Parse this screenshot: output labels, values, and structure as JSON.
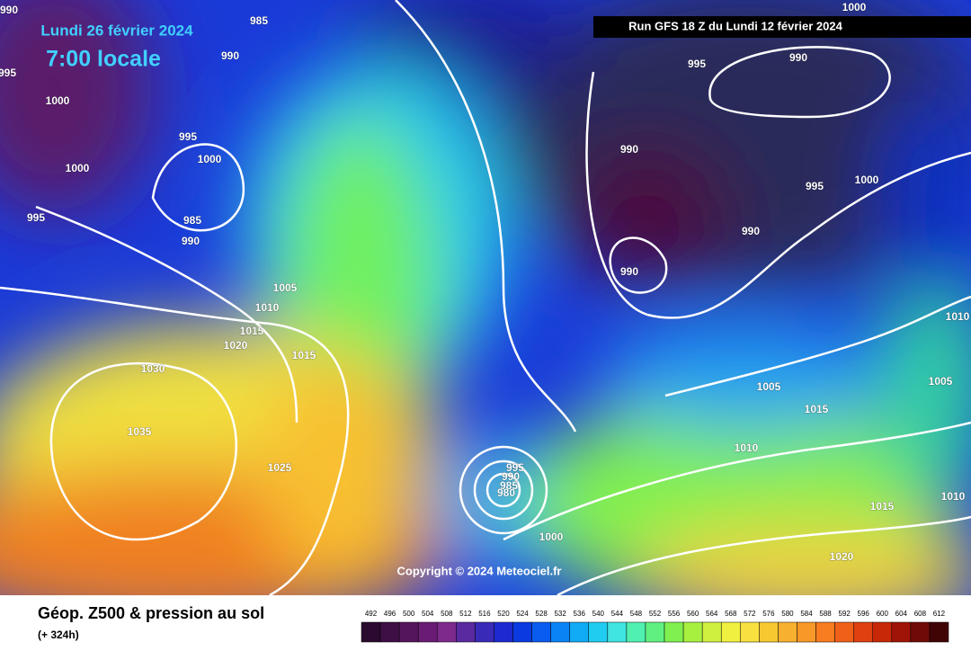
{
  "header": {
    "date": "Lundi 26 février 2024",
    "time": "7:00 locale",
    "run": "Run GFS 18 Z du Lundi 12 février 2024"
  },
  "copyright": "Copyright © 2024 Meteociel.fr",
  "footer": {
    "title": "Géop. Z500 & pression au sol",
    "lead": "(+ 324h)"
  },
  "isobars": [
    990,
    985,
    995,
    990,
    1000,
    995,
    1000,
    1000,
    995,
    985,
    990,
    1005,
    1010,
    1015,
    1020,
    1015,
    1030,
    1035,
    1025,
    995,
    990,
    985,
    980,
    1000,
    1000,
    995,
    990,
    990,
    995,
    1000,
    990,
    990,
    1010,
    1005,
    1005,
    1015,
    1010,
    1015,
    1010,
    1020
  ],
  "colorbar": {
    "ticks": [
      492,
      496,
      500,
      504,
      508,
      512,
      516,
      520,
      524,
      528,
      532,
      536,
      540,
      544,
      548,
      552,
      556,
      560,
      564,
      568,
      572,
      576,
      580,
      584,
      588,
      592,
      596,
      600,
      604,
      608,
      612
    ],
    "colors": [
      "#2a0a2e",
      "#3e0f44",
      "#55155c",
      "#6a1c74",
      "#7d2a8c",
      "#5a2aa0",
      "#3a2ab8",
      "#1e2ad0",
      "#0a3ae0",
      "#0a5cf0",
      "#0a84f5",
      "#10aaf5",
      "#20ccf0",
      "#40e4e0",
      "#50f0b0",
      "#60f080",
      "#80f050",
      "#a8f040",
      "#d0f040",
      "#f0f040",
      "#f8e040",
      "#f8c830",
      "#f8b030",
      "#f89828",
      "#f87c20",
      "#f06018",
      "#e04010",
      "#c82808",
      "#a01408",
      "#700a08",
      "#400404"
    ]
  }
}
